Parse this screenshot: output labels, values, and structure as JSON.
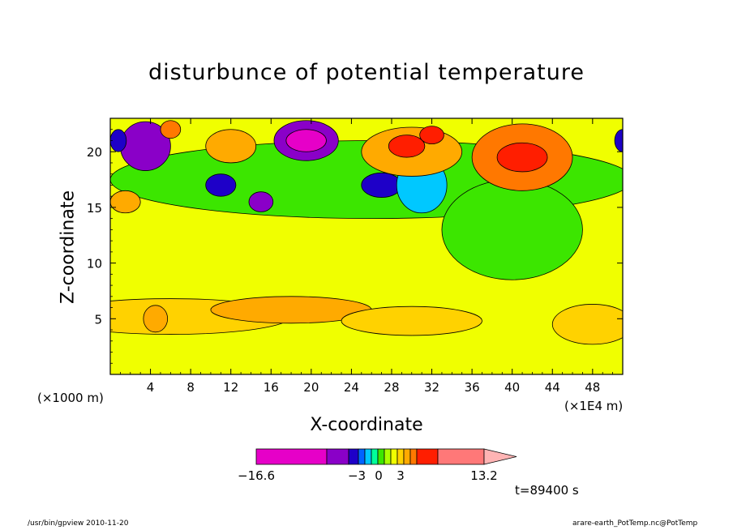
{
  "chart_data": {
    "type": "heatmap",
    "title": "disturbunce of potential temperature",
    "xlabel": "X-coordinate",
    "ylabel": "Z-coordinate",
    "x_unit_left": "(×1000 m)",
    "x_unit_right": "(×1E4 m)",
    "xlim": [
      0,
      51
    ],
    "ylim": [
      0,
      23
    ],
    "x_ticks": [
      "4",
      "8",
      "12",
      "16",
      "20",
      "24",
      "28",
      "32",
      "36",
      "40",
      "44",
      "48"
    ],
    "y_ticks": [
      "5",
      "10",
      "15",
      "20"
    ],
    "time_label": "t=89400 s",
    "colorbar": {
      "min_label": "−16.6",
      "max_label": "13.2",
      "mid_labels": [
        "−3",
        "0",
        "3"
      ],
      "colors": [
        "#e600c8",
        "#8a00c8",
        "#1e00c8",
        "#0064ff",
        "#00c8ff",
        "#00ff9a",
        "#3ce600",
        "#aaff00",
        "#f0ff00",
        "#ffd200",
        "#ffaa00",
        "#ff7800",
        "#ff1e00",
        "#ff7878",
        "#ffb4b4"
      ]
    },
    "levels": [
      "#e600c8",
      "#8a00c8",
      "#1e00c8",
      "#0064ff",
      "#00c8ff",
      "#00c8ff",
      "#3ce600",
      "#f0ff00",
      "#ffd200",
      "#ffaa00",
      "#ff7800",
      "#ff1e00",
      "#ff7878"
    ],
    "background_field_color": "#f0ff00",
    "features": [
      {
        "x": 6,
        "y": 5.2,
        "rx": 12,
        "ry": 1.6,
        "level": 8
      },
      {
        "x": 18,
        "y": 5.8,
        "rx": 8,
        "ry": 1.2,
        "level": 9
      },
      {
        "x": 4.5,
        "y": 5,
        "rx": 1.2,
        "ry": 1.2,
        "level": 9
      },
      {
        "x": 48,
        "y": 4.5,
        "rx": 4,
        "ry": 1.8,
        "level": 8
      },
      {
        "x": 30,
        "y": 4.8,
        "rx": 7,
        "ry": 1.3,
        "level": 8
      },
      {
        "x": 26,
        "y": 17.5,
        "rx": 26,
        "ry": 3.5,
        "level": 6
      },
      {
        "x": 40,
        "y": 13,
        "rx": 7,
        "ry": 4.5,
        "level": 6
      },
      {
        "x": 19.5,
        "y": 21,
        "rx": 3.2,
        "ry": 1.8,
        "level": 1
      },
      {
        "x": 19.5,
        "y": 21,
        "rx": 2,
        "ry": 1,
        "level": 0
      },
      {
        "x": 3.5,
        "y": 20.5,
        "rx": 2.5,
        "ry": 2.2,
        "level": 1
      },
      {
        "x": 11,
        "y": 17,
        "rx": 1.5,
        "ry": 1,
        "level": 2
      },
      {
        "x": 27,
        "y": 17,
        "rx": 2,
        "ry": 1.1,
        "level": 2
      },
      {
        "x": 15,
        "y": 15.5,
        "rx": 1.2,
        "ry": 0.9,
        "level": 1
      },
      {
        "x": 31,
        "y": 17,
        "rx": 2.5,
        "ry": 2.5,
        "level": 4
      },
      {
        "x": 41,
        "y": 19.5,
        "rx": 5,
        "ry": 3,
        "level": 10
      },
      {
        "x": 41,
        "y": 19.5,
        "rx": 2.5,
        "ry": 1.3,
        "level": 11
      },
      {
        "x": 30,
        "y": 20,
        "rx": 5,
        "ry": 2.2,
        "level": 9
      },
      {
        "x": 29.5,
        "y": 20.5,
        "rx": 1.8,
        "ry": 1,
        "level": 11
      },
      {
        "x": 32,
        "y": 21.5,
        "rx": 1.2,
        "ry": 0.8,
        "level": 11
      },
      {
        "x": 12,
        "y": 20.5,
        "rx": 2.5,
        "ry": 1.5,
        "level": 9
      },
      {
        "x": 6,
        "y": 22,
        "rx": 1,
        "ry": 0.8,
        "level": 10
      },
      {
        "x": 1.5,
        "y": 15.5,
        "rx": 1.5,
        "ry": 1,
        "level": 9
      },
      {
        "x": 0.8,
        "y": 21,
        "rx": 0.8,
        "ry": 1,
        "level": 2
      },
      {
        "x": 51,
        "y": 21,
        "rx": 0.8,
        "ry": 1,
        "level": 2
      }
    ]
  },
  "footer": {
    "left": "/usr/bin/gpview   2010-11-20",
    "right": "arare-earth_PotTemp.nc@PotTemp"
  }
}
